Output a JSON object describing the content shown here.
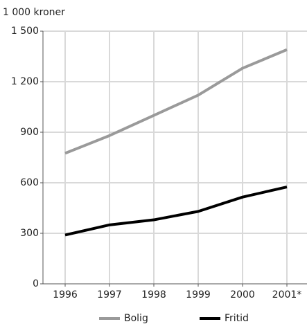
{
  "chart_data": {
    "type": "line",
    "y_label": "1 000 kroner",
    "categories": [
      "1996",
      "1997",
      "1998",
      "1999",
      "2000",
      "2001*"
    ],
    "series": [
      {
        "name": "Bolig",
        "color": "#9a9a9a",
        "values": [
          775,
          880,
          1000,
          1120,
          1280,
          1390
        ]
      },
      {
        "name": "Fritid",
        "color": "#000000",
        "values": [
          290,
          350,
          380,
          430,
          515,
          575
        ]
      }
    ],
    "ylim": [
      0,
      1500
    ],
    "yticks": [
      0,
      300,
      600,
      900,
      {
        "value": 1200,
        "label": "1 200"
      },
      {
        "value": 1500,
        "label": "1 500"
      }
    ],
    "grid": true
  }
}
